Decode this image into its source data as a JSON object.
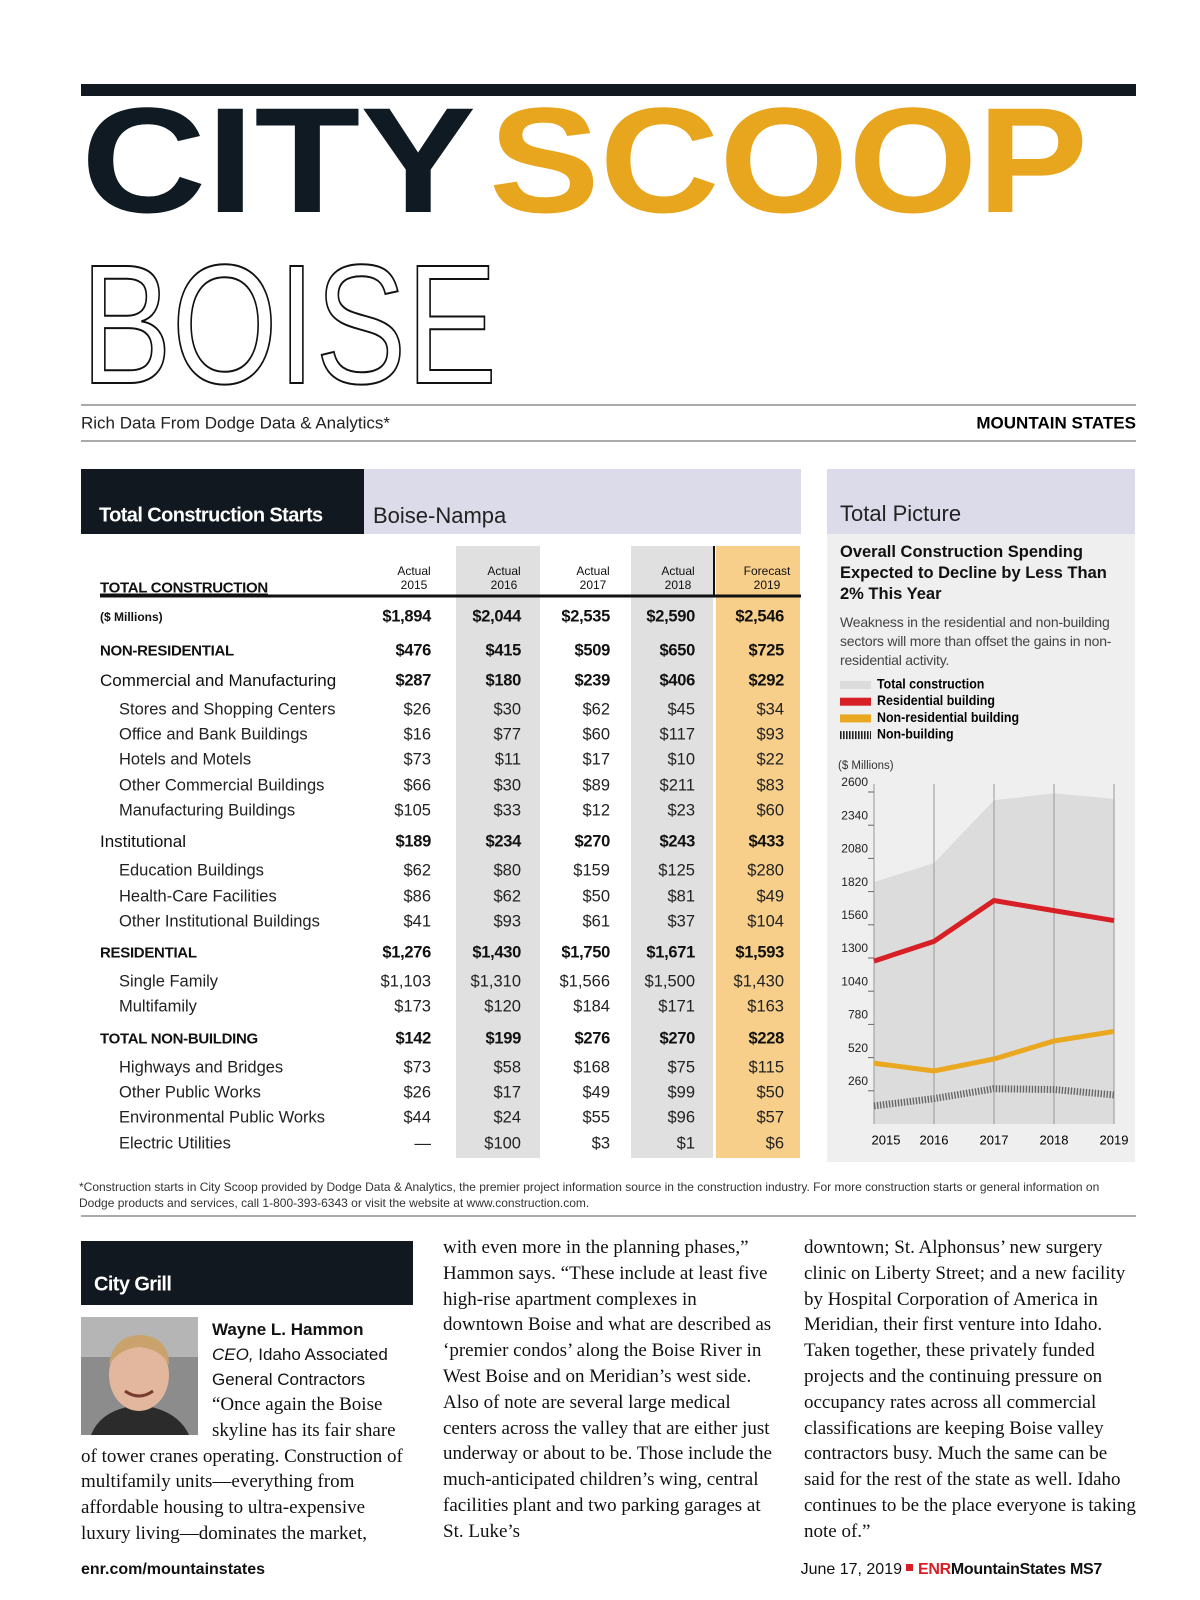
{
  "header": {
    "title_dark": "CITY",
    "title_accent": "SCOOP",
    "city": "BOISE",
    "tagline": "Rich Data From Dodge Data & Analytics*",
    "region": "MOUNTAIN STATES"
  },
  "table": {
    "title": "Total Construction Starts",
    "area": "Boise-Nampa",
    "heading": "TOTAL CONSTRUCTION",
    "columns": [
      {
        "kind": "Actual",
        "year": "2015"
      },
      {
        "kind": "Actual",
        "year": "2016"
      },
      {
        "kind": "Actual",
        "year": "2017"
      },
      {
        "kind": "Actual",
        "year": "2018"
      },
      {
        "kind": "Forecast",
        "year": "2019"
      }
    ],
    "units_row": {
      "label": "($ Millions)",
      "values": [
        "$1,894",
        "$2,044",
        "$2,535",
        "$2,590",
        "$2,546"
      ]
    },
    "groups": [
      {
        "label": "NON-RESIDENTIAL",
        "values": [
          "$476",
          "$415",
          "$509",
          "$650",
          "$725"
        ]
      },
      {
        "label": "Commercial and Manufacturing",
        "values": [
          "$287",
          "$180",
          "$239",
          "$406",
          "$292"
        ],
        "rows": [
          {
            "label": "Stores and Shopping Centers",
            "values": [
              "$26",
              "$30",
              "$62",
              "$45",
              "$34"
            ]
          },
          {
            "label": "Office and Bank Buildings",
            "values": [
              "$16",
              "$77",
              "$60",
              "$117",
              "$93"
            ]
          },
          {
            "label": "Hotels and Motels",
            "values": [
              "$73",
              "$11",
              "$17",
              "$10",
              "$22"
            ]
          },
          {
            "label": "Other Commercial Buildings",
            "values": [
              "$66",
              "$30",
              "$89",
              "$211",
              "$83"
            ]
          },
          {
            "label": "Manufacturing Buildings",
            "values": [
              "$105",
              "$33",
              "$12",
              "$23",
              "$60"
            ]
          }
        ]
      },
      {
        "label": "Institutional",
        "values": [
          "$189",
          "$234",
          "$270",
          "$243",
          "$433"
        ],
        "rows": [
          {
            "label": "Education Buildings",
            "values": [
              "$62",
              "$80",
              "$159",
              "$125",
              "$280"
            ]
          },
          {
            "label": "Health-Care Facilities",
            "values": [
              "$86",
              "$62",
              "$50",
              "$81",
              "$49"
            ]
          },
          {
            "label": "Other Institutional Buildings",
            "values": [
              "$41",
              "$93",
              "$61",
              "$37",
              "$104"
            ]
          }
        ]
      },
      {
        "label": "RESIDENTIAL",
        "values": [
          "$1,276",
          "$1,430",
          "$1,750",
          "$1,671",
          "$1,593"
        ],
        "rows": [
          {
            "label": "Single Family",
            "values": [
              "$1,103",
              "$1,310",
              "$1,566",
              "$1,500",
              "$1,430"
            ]
          },
          {
            "label": "Multifamily",
            "values": [
              "$173",
              "$120",
              "$184",
              "$171",
              "$163"
            ]
          }
        ]
      },
      {
        "label": "TOTAL NON-BUILDING",
        "values": [
          "$142",
          "$199",
          "$276",
          "$270",
          "$228"
        ],
        "rows": [
          {
            "label": "Highways and Bridges",
            "values": [
              "$73",
              "$58",
              "$168",
              "$75",
              "$115"
            ]
          },
          {
            "label": "Other Public Works",
            "values": [
              "$26",
              "$17",
              "$49",
              "$99",
              "$50"
            ]
          },
          {
            "label": "Environmental Public Works",
            "values": [
              "$44",
              "$24",
              "$55",
              "$96",
              "$57"
            ]
          },
          {
            "label": "Electric Utilities",
            "values": [
              "—",
              "$100",
              "$3",
              "$1",
              "$6"
            ]
          }
        ]
      }
    ]
  },
  "chart_data": {
    "type": "line",
    "heading": "Total Picture",
    "title": "Overall Construction Spending Expected to Decline by Less Than 2% This Year",
    "subtitle": "Weakness in the residential and non-building sectors will more than offset the gains in non-residential activity.",
    "y_label": "($ Millions)",
    "categories": [
      "2015",
      "2016",
      "2017",
      "2018",
      "2019"
    ],
    "ylim": [
      0,
      2600
    ],
    "yticks": [
      260,
      520,
      780,
      1040,
      1300,
      1560,
      1820,
      2080,
      2340,
      2600
    ],
    "grid": true,
    "series": [
      {
        "name": "Total construction",
        "color": "#dcdcdc",
        "mark": "area",
        "values": [
          1894,
          2044,
          2535,
          2590,
          2546
        ]
      },
      {
        "name": "Residential building",
        "color": "#d71f26",
        "mark": "line",
        "values": [
          1276,
          1430,
          1750,
          1671,
          1593
        ]
      },
      {
        "name": "Non-residential building",
        "color": "#e9a81f",
        "mark": "line",
        "values": [
          476,
          415,
          509,
          650,
          725
        ]
      },
      {
        "name": "Non-building",
        "color": "#666666",
        "mark": "hatch",
        "values": [
          142,
          199,
          276,
          270,
          228
        ]
      }
    ]
  },
  "footnote": "*Construction starts in City Scoop provided by Dodge Data & Analytics, the premier project information source in the construction industry. For more construction starts or general information on Dodge products and services, call 1-800-393-6343 or visit the website at www.construction.com.",
  "article": {
    "section": "City Grill",
    "name": "Wayne L. Hammon",
    "role": "CEO,",
    "organization": "Idaho Associated General Contractors",
    "columns": [
      "“Once again the Boise skyline has its fair share of tower cranes operating. Construction of multifamily units—everything from affordable housing to ultra-expensive luxury living—dominates the market,",
      "with even more in the planning phases,” Hammon says. “These include at least five high-rise apartment complexes in downtown Boise and what are described as ‘premier condos’ along the Boise River in West Boise and on Meridian’s west side. Also of note are several large medical centers across the valley that are either just underway or about to be. Those include the much-anticipated children’s wing, central facilities plant and two parking garages at St. Luke’s",
      "downtown; St. Alphonsus’ new surgery clinic on Liberty Street; and a new facility by Hospital Corporation of America in Meridian, their first venture into Idaho. Taken together, these privately funded projects and the continuing pressure on occupancy rates across all commercial classifications are keeping Boise valley contractors busy. Much the same can be said for the rest of the state as well. Idaho continues to be the place everyone is taking note of.”"
    ]
  },
  "footer": {
    "url": "enr.com/mountainstates",
    "date": "June 17, 2019",
    "brand": "ENR",
    "edition": "MountainStates",
    "page": "MS7"
  }
}
